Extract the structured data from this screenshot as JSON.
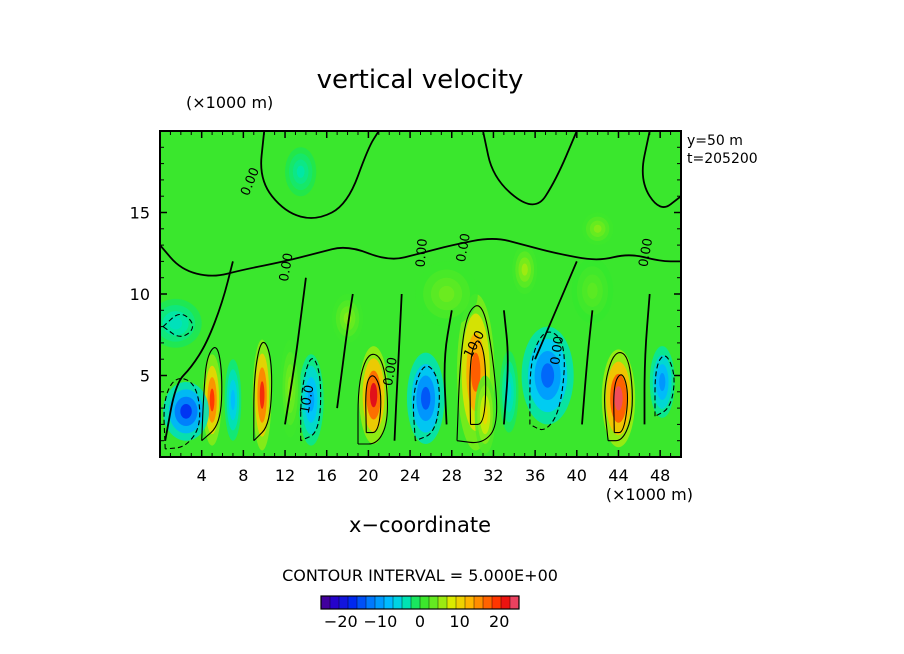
{
  "chart_data": {
    "type": "heatmap",
    "title": "vertical velocity",
    "xlabel": "x−coordinate",
    "x_unit": "(×1000 m)",
    "y_unit": "(×1000 m)",
    "annotations": [
      "y=50  m",
      "t=205200"
    ],
    "xlim": [
      0,
      50
    ],
    "ylim": [
      0,
      20
    ],
    "x_ticks": [
      4,
      8,
      12,
      16,
      20,
      24,
      28,
      32,
      36,
      40,
      44,
      48
    ],
    "y_ticks": [
      5,
      10,
      15
    ],
    "contour_interval_text": "CONTOUR INTERVAL = 5.000E+00",
    "contour_labels": [
      {
        "text": "0.00",
        "x": 9,
        "y": 16.8,
        "angle": -68
      },
      {
        "text": "0.00",
        "x": 12.5,
        "y": 11.6,
        "angle": -80
      },
      {
        "text": "0.00",
        "x": 25.5,
        "y": 12.5,
        "angle": -85
      },
      {
        "text": "0.00",
        "x": 29.5,
        "y": 12.8,
        "angle": -80
      },
      {
        "text": "0.00",
        "x": 47,
        "y": 12.5,
        "angle": -80
      },
      {
        "text": "0.00",
        "x": 38.5,
        "y": 6.5,
        "angle": -82
      },
      {
        "text": "0.00",
        "x": 22.5,
        "y": 5.2,
        "angle": -80
      },
      {
        "text": "10.0",
        "x": 14.5,
        "y": 3.5,
        "angle": -80
      },
      {
        "text": "10.0",
        "x": 30.5,
        "y": 6.8,
        "angle": -62
      }
    ],
    "colorbar": {
      "range": [
        -25,
        25
      ],
      "tick_labels": [
        "−20",
        "−10",
        "0",
        "10",
        "20"
      ],
      "tick_values": [
        -20,
        -10,
        0,
        10,
        20
      ]
    },
    "features": [
      {
        "x": 5,
        "y": 3.5,
        "w": 0.9,
        "h": 2.8,
        "v": 20
      },
      {
        "x": 9.8,
        "y": 3.8,
        "w": 0.9,
        "h": 3.4,
        "v": 21
      },
      {
        "x": 20.5,
        "y": 3.8,
        "w": 1.4,
        "h": 3.0,
        "v": 23
      },
      {
        "x": 30.3,
        "y": 5.2,
        "w": 1.8,
        "h": 4.8,
        "v": 18
      },
      {
        "x": 31.2,
        "y": 2.6,
        "w": 1.0,
        "h": 2.4,
        "v": 10
      },
      {
        "x": 44,
        "y": 3.6,
        "w": 1.6,
        "h": 3.0,
        "v": 24
      },
      {
        "x": 2.5,
        "y": 2.8,
        "w": 2.2,
        "h": 1.8,
        "v": -17
      },
      {
        "x": 7,
        "y": 3.5,
        "w": 0.8,
        "h": 2.5,
        "v": -8
      },
      {
        "x": 14.5,
        "y": 3.5,
        "w": 1.2,
        "h": 2.8,
        "v": -10
      },
      {
        "x": 25.5,
        "y": 3.6,
        "w": 1.8,
        "h": 2.8,
        "v": -15
      },
      {
        "x": 37.2,
        "y": 5.0,
        "w": 2.5,
        "h": 3.0,
        "v": -14
      },
      {
        "x": 48.2,
        "y": 4.6,
        "w": 1.2,
        "h": 2.2,
        "v": -11
      },
      {
        "x": 12.5,
        "y": 4.2,
        "w": 1.0,
        "h": 3.0,
        "v": 5
      },
      {
        "x": 33.5,
        "y": 4.0,
        "w": 0.9,
        "h": 2.5,
        "v": -5
      },
      {
        "x": 1.5,
        "y": 8.2,
        "w": 2.5,
        "h": 1.5,
        "v": -4
      },
      {
        "x": 27.5,
        "y": 10.0,
        "w": 3.0,
        "h": 2.0,
        "v": 4
      },
      {
        "x": 41.5,
        "y": 10.2,
        "w": 2.0,
        "h": 2.0,
        "v": 3
      },
      {
        "x": 35,
        "y": 11.5,
        "w": 1.2,
        "h": 1.5,
        "v": 6
      },
      {
        "x": 42,
        "y": 14.0,
        "w": 1.5,
        "h": 1.0,
        "v": 5
      },
      {
        "x": 13.5,
        "y": 17.5,
        "w": 1.5,
        "h": 1.5,
        "v": -3
      },
      {
        "x": 18,
        "y": 8.5,
        "w": 1.5,
        "h": 1.5,
        "v": 5
      }
    ],
    "contours": [
      {
        "level": 0,
        "points": [
          [
            0.5,
            1
          ],
          [
            1.5,
            4.5
          ],
          [
            3,
            5.5
          ],
          [
            4.5,
            7
          ],
          [
            6,
            9.5
          ],
          [
            7,
            12
          ]
        ]
      },
      {
        "level": 0,
        "points": [
          [
            12,
            2
          ],
          [
            13,
            6
          ],
          [
            13.5,
            8.5
          ],
          [
            14,
            11
          ]
        ]
      },
      {
        "level": 0,
        "points": [
          [
            17,
            3
          ],
          [
            18,
            8
          ],
          [
            18.5,
            10
          ]
        ]
      },
      {
        "level": 0,
        "points": [
          [
            22.5,
            1
          ],
          [
            22.8,
            5
          ],
          [
            23.2,
            10
          ]
        ]
      },
      {
        "level": 0,
        "points": [
          [
            27.5,
            2
          ],
          [
            27.2,
            6
          ],
          [
            28,
            9
          ]
        ]
      },
      {
        "level": 0,
        "points": [
          [
            33,
            2
          ],
          [
            33.5,
            6
          ],
          [
            33,
            9
          ]
        ]
      },
      {
        "level": 0,
        "points": [
          [
            36,
            6
          ],
          [
            38,
            9
          ],
          [
            40,
            12
          ]
        ]
      },
      {
        "level": 0,
        "points": [
          [
            40.5,
            2
          ],
          [
            41,
            6
          ],
          [
            41.5,
            9
          ]
        ]
      },
      {
        "level": 0,
        "points": [
          [
            46.5,
            2
          ],
          [
            46.5,
            6
          ],
          [
            47,
            10
          ]
        ]
      },
      {
        "level": 0,
        "points": [
          [
            10,
            20
          ],
          [
            9.5,
            17
          ],
          [
            12,
            15
          ],
          [
            15,
            14.5
          ],
          [
            18,
            15.5
          ],
          [
            20,
            19
          ],
          [
            21,
            20
          ]
        ]
      },
      {
        "level": 0,
        "points": [
          [
            31,
            20
          ],
          [
            32,
            17
          ],
          [
            36,
            15
          ],
          [
            38,
            17
          ],
          [
            40,
            20
          ]
        ]
      },
      {
        "level": 0,
        "points": [
          [
            47,
            20
          ],
          [
            46,
            17
          ],
          [
            48,
            15
          ],
          [
            50,
            16
          ]
        ]
      },
      {
        "level": 0,
        "points": [
          [
            0,
            13
          ],
          [
            2,
            11.5
          ],
          [
            5,
            11
          ],
          [
            8,
            11.5
          ],
          [
            12,
            12
          ],
          [
            15,
            12.5
          ],
          [
            18,
            13
          ],
          [
            22,
            12
          ],
          [
            25,
            12.5
          ],
          [
            28,
            13
          ],
          [
            32,
            13.5
          ],
          [
            35,
            13
          ],
          [
            38,
            12.5
          ],
          [
            42,
            12
          ],
          [
            45,
            12.5
          ],
          [
            48,
            12
          ],
          [
            50,
            12
          ]
        ]
      },
      {
        "level": 5,
        "points": [
          [
            4,
            1
          ],
          [
            4.2,
            4
          ],
          [
            4.5,
            6.2
          ],
          [
            5.5,
            7
          ],
          [
            6,
            5
          ],
          [
            5.8,
            2
          ],
          [
            4,
            1
          ]
        ]
      },
      {
        "level": 5,
        "points": [
          [
            9,
            1
          ],
          [
            9,
            5
          ],
          [
            9.8,
            7.5
          ],
          [
            10.8,
            6
          ],
          [
            10.6,
            2
          ],
          [
            9,
            1
          ]
        ]
      },
      {
        "level": 5,
        "points": [
          [
            19,
            0.8
          ],
          [
            19,
            4.5
          ],
          [
            20,
            6.5
          ],
          [
            21.5,
            6
          ],
          [
            22,
            2.5
          ],
          [
            21,
            0.8
          ],
          [
            19,
            0.8
          ]
        ]
      },
      {
        "level": 5,
        "points": [
          [
            28.5,
            1
          ],
          [
            28.8,
            6
          ],
          [
            29.5,
            9
          ],
          [
            31,
            9.5
          ],
          [
            32,
            6
          ],
          [
            32.5,
            2
          ],
          [
            31,
            0.8
          ],
          [
            28.5,
            1
          ]
        ]
      },
      {
        "level": 5,
        "points": [
          [
            43,
            1
          ],
          [
            42.5,
            4
          ],
          [
            43.5,
            6.5
          ],
          [
            45,
            6.3
          ],
          [
            45.5,
            3
          ],
          [
            44.5,
            1
          ],
          [
            43,
            1
          ]
        ]
      },
      {
        "level": 15,
        "points": [
          [
            19.8,
            1.5
          ],
          [
            19.7,
            4.5
          ],
          [
            20.5,
            5.2
          ],
          [
            21.3,
            4
          ],
          [
            21,
            1.5
          ],
          [
            19.8,
            1.5
          ]
        ]
      },
      {
        "level": 15,
        "points": [
          [
            29.8,
            2
          ],
          [
            29.7,
            6
          ],
          [
            30.5,
            7.5
          ],
          [
            31.3,
            6
          ],
          [
            31.2,
            2
          ],
          [
            29.8,
            2
          ]
        ]
      },
      {
        "level": 15,
        "points": [
          [
            43.6,
            1.5
          ],
          [
            43.5,
            4.5
          ],
          [
            44.4,
            5.3
          ],
          [
            45,
            3.8
          ],
          [
            44.5,
            1.5
          ],
          [
            43.6,
            1.5
          ]
        ]
      },
      {
        "level": -5,
        "points": [
          [
            0.5,
            0.5
          ],
          [
            0.3,
            3.5
          ],
          [
            1.5,
            5
          ],
          [
            3.5,
            4.5
          ],
          [
            4,
            2
          ],
          [
            2.5,
            0.6
          ],
          [
            0.5,
            0.5
          ]
        ]
      },
      {
        "level": -5,
        "points": [
          [
            13.5,
            1
          ],
          [
            13.5,
            4
          ],
          [
            14.5,
            6.5
          ],
          [
            15.5,
            5
          ],
          [
            15.3,
            1.5
          ],
          [
            13.5,
            1
          ]
        ]
      },
      {
        "level": -5,
        "points": [
          [
            24.5,
            1
          ],
          [
            24.2,
            4
          ],
          [
            25.5,
            6
          ],
          [
            27,
            4.5
          ],
          [
            26.5,
            1.5
          ],
          [
            24.5,
            1
          ]
        ]
      },
      {
        "level": -5,
        "points": [
          [
            35.5,
            2
          ],
          [
            35.5,
            6
          ],
          [
            37,
            8
          ],
          [
            39,
            7
          ],
          [
            38.5,
            3
          ],
          [
            37,
            1.5
          ],
          [
            35.5,
            2
          ]
        ]
      },
      {
        "level": -5,
        "points": [
          [
            47.5,
            2.5
          ],
          [
            47.5,
            5.5
          ],
          [
            48.5,
            6.5
          ],
          [
            49.5,
            5
          ],
          [
            49,
            3
          ],
          [
            47.5,
            2.5
          ]
        ]
      },
      {
        "level": -5,
        "points": [
          [
            0.3,
            8
          ],
          [
            2,
            9
          ],
          [
            3.5,
            8
          ],
          [
            2,
            7.2
          ],
          [
            0.3,
            8
          ]
        ]
      }
    ]
  }
}
